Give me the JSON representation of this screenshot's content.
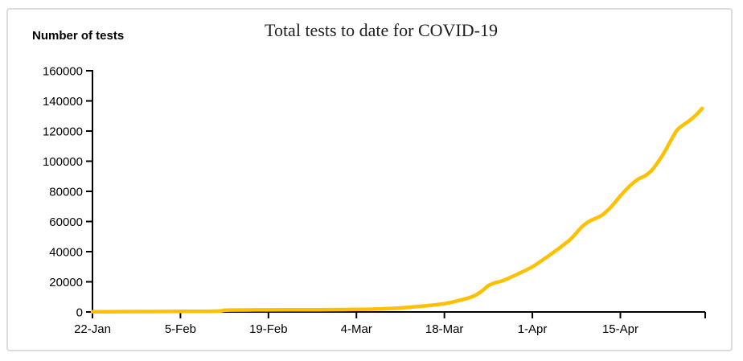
{
  "card": {
    "background": "#ffffff",
    "border_color": "#dcdcdc"
  },
  "chart_data": {
    "type": "line",
    "title": "Total tests to date for COVID-19",
    "y_axis_label": "Number of tests",
    "xlabel": "",
    "ylabel": "Number of tests",
    "ylim": [
      0,
      160000
    ],
    "y_ticks": [
      0,
      20000,
      40000,
      60000,
      80000,
      100000,
      120000,
      140000,
      160000
    ],
    "x_axis": {
      "start_label": "22-Jan",
      "end_day": 97.5,
      "ticks": [
        {
          "label": "22-Jan",
          "day": 0
        },
        {
          "label": "5-Feb",
          "day": 14
        },
        {
          "label": "19-Feb",
          "day": 28
        },
        {
          "label": "4-Mar",
          "day": 42
        },
        {
          "label": "18-Mar",
          "day": 56
        },
        {
          "label": "1-Apr",
          "day": 70
        },
        {
          "label": "15-Apr",
          "day": 84
        }
      ],
      "end_tick_unlabeled": true
    },
    "grid": false,
    "legend": "none",
    "line_color": "#FFC000",
    "axis_color": "#000000",
    "series": [
      {
        "name": "Total tests to date",
        "points_format": [
          "day_offset_from_22_Jan",
          "total_tests"
        ],
        "points": [
          [
            0,
            100
          ],
          [
            4,
            200
          ],
          [
            8,
            250
          ],
          [
            12,
            300
          ],
          [
            14,
            350
          ],
          [
            17,
            400
          ],
          [
            20,
            600
          ],
          [
            21,
            1100
          ],
          [
            22,
            1300
          ],
          [
            25,
            1350
          ],
          [
            28,
            1400
          ],
          [
            32,
            1450
          ],
          [
            36,
            1500
          ],
          [
            40,
            1600
          ],
          [
            42,
            1700
          ],
          [
            45,
            1900
          ],
          [
            48,
            2400
          ],
          [
            50,
            3000
          ],
          [
            52,
            3700
          ],
          [
            54,
            4500
          ],
          [
            56,
            5500
          ],
          [
            58,
            7300
          ],
          [
            60,
            9500
          ],
          [
            61,
            11200
          ],
          [
            62,
            14000
          ],
          [
            63,
            17500
          ],
          [
            64,
            19300
          ],
          [
            65,
            20300
          ],
          [
            66,
            22000
          ],
          [
            68,
            25800
          ],
          [
            70,
            30000
          ],
          [
            72,
            35500
          ],
          [
            74,
            41500
          ],
          [
            76,
            48000
          ],
          [
            77,
            52500
          ],
          [
            78,
            57000
          ],
          [
            79,
            60000
          ],
          [
            80,
            62000
          ],
          [
            81,
            64000
          ],
          [
            82,
            67500
          ],
          [
            83,
            72000
          ],
          [
            84,
            77000
          ],
          [
            85,
            81500
          ],
          [
            86,
            85500
          ],
          [
            87,
            88500
          ],
          [
            88,
            90500
          ],
          [
            89,
            94000
          ],
          [
            90,
            99500
          ],
          [
            91,
            106000
          ],
          [
            92,
            113500
          ],
          [
            93,
            120500
          ],
          [
            94,
            124000
          ],
          [
            95,
            127000
          ],
          [
            96,
            130500
          ],
          [
            97,
            135000
          ]
        ]
      }
    ]
  }
}
